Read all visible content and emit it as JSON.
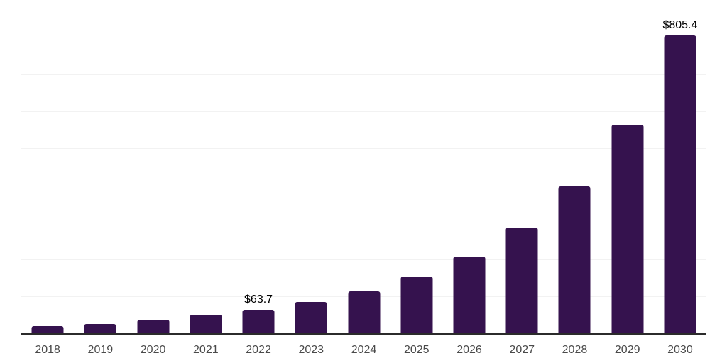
{
  "chart_data": {
    "type": "bar",
    "title": "",
    "xlabel": "",
    "ylabel": "",
    "categories": [
      "2018",
      "2019",
      "2020",
      "2021",
      "2022",
      "2023",
      "2024",
      "2025",
      "2026",
      "2027",
      "2028",
      "2029",
      "2030"
    ],
    "values": [
      19,
      25,
      37,
      50,
      63.7,
      85,
      114,
      153,
      208,
      285,
      398,
      565,
      805.4
    ],
    "bar_labels": [
      "",
      "",
      "",
      "",
      "$63.7",
      "",
      "",
      "",
      "",
      "",
      "",
      "",
      "$805.4"
    ],
    "ylim": [
      0,
      900
    ],
    "gridline_interval": 100,
    "grid": "horizontal-only",
    "legend": "none",
    "y_axis_tick_labels": "none",
    "colors": {
      "bar": "#35124E",
      "axis_line": "#2B2B2B",
      "gridline": "#F2F2F2",
      "top_gridline": "#E7E7E7",
      "tick_label": "#4A4A4A",
      "value_label": "#000000",
      "background": "#FFFFFF"
    }
  }
}
